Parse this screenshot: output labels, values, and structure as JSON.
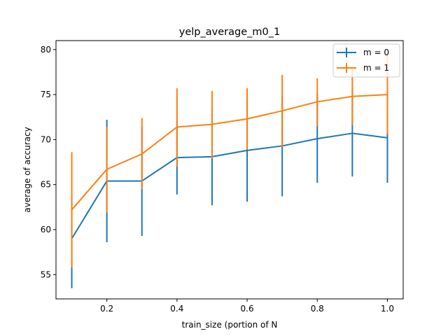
{
  "chart_data": {
    "type": "line",
    "title": "yelp_average_m0_1",
    "xlabel": "train_size (portion of N",
    "ylabel": "average of accuracy",
    "x": [
      0.1,
      0.2,
      0.3,
      0.4,
      0.5,
      0.6,
      0.7,
      0.8,
      0.9,
      1.0
    ],
    "xlim": [
      0.055,
      1.045
    ],
    "ylim": [
      52.3,
      81.0
    ],
    "x_ticks": [
      "0.2",
      "0.4",
      "0.6",
      "0.8",
      "1.0"
    ],
    "x_tick_values": [
      0.2,
      0.4,
      0.6,
      0.8,
      1.0
    ],
    "y_ticks": [
      "55",
      "60",
      "65",
      "70",
      "75",
      "80"
    ],
    "y_tick_values": [
      55,
      60,
      65,
      70,
      75,
      80
    ],
    "grid": false,
    "legend_position": "top-right",
    "series": [
      {
        "name": "m = 0",
        "color": "#1f77b4",
        "values": [
          59.0,
          65.4,
          65.4,
          68.0,
          68.1,
          68.8,
          69.3,
          70.1,
          70.7,
          70.2
        ],
        "err_low": [
          53.5,
          58.6,
          59.3,
          63.9,
          62.7,
          63.1,
          63.7,
          65.2,
          65.9,
          65.2
        ],
        "err_high": [
          64.0,
          72.2,
          71.4,
          72.0,
          73.4,
          74.5,
          74.9,
          75.1,
          75.6,
          75.2
        ]
      },
      {
        "name": "m = 1",
        "color": "#ff7f0e",
        "values": [
          62.2,
          66.7,
          68.4,
          71.4,
          71.7,
          72.3,
          73.2,
          74.2,
          74.8,
          75.0
        ],
        "err_low": [
          55.8,
          61.9,
          64.5,
          67.0,
          67.9,
          68.9,
          69.2,
          71.5,
          71.6,
          70.6
        ],
        "err_high": [
          68.6,
          71.4,
          72.4,
          75.7,
          75.4,
          75.7,
          77.2,
          76.8,
          77.9,
          79.4
        ]
      }
    ]
  }
}
